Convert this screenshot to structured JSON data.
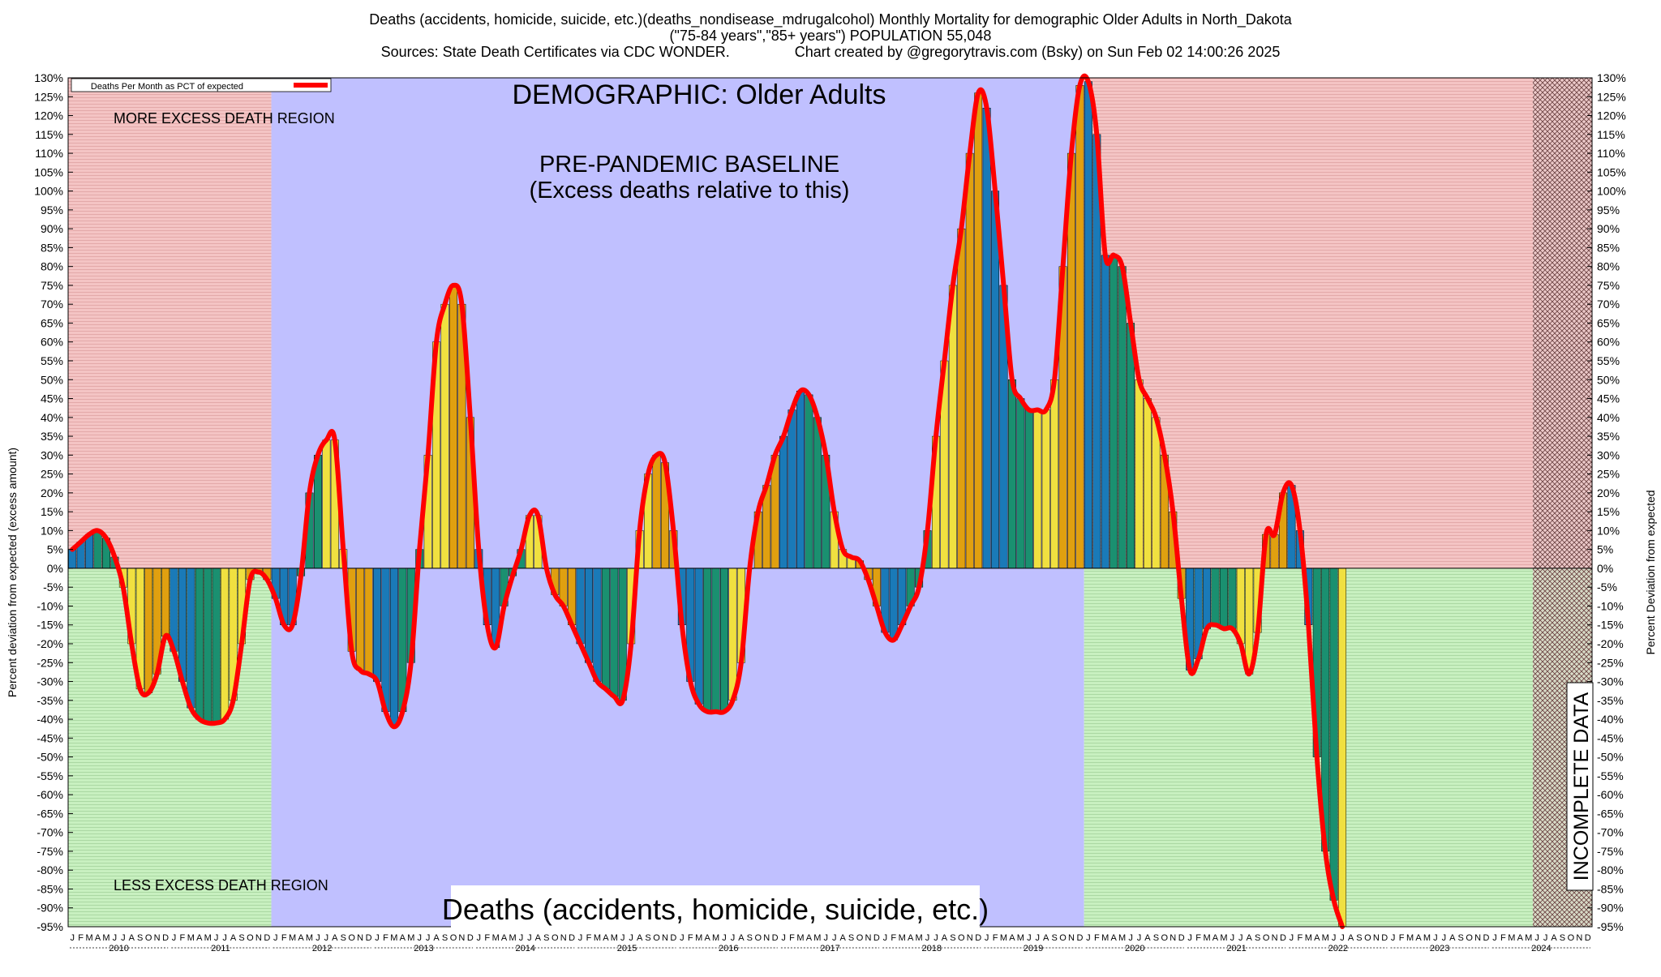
{
  "header": {
    "title_line1": "Deaths (accidents, homicide, suicide, etc.)(deaths_nondisease_mdrugalcohol) Monthly Mortality for demographic Older Adults in North_Dakota",
    "title_line2": "(\"75-84 years\",\"85+ years\") POPULATION 55,048",
    "title_line3": "Sources: State Death Certificates via CDC WONDER.                Chart created by @gregorytravis.com (Bsky) on Sun Feb 02 14:00:26 2025"
  },
  "annotations": {
    "demographic": "DEMOGRAPHIC: Older Adults",
    "baseline_line1": "PRE-PANDEMIC BASELINE",
    "baseline_line2": "(Excess deaths relative to this)",
    "more_region": "MORE EXCESS DEATH REGION",
    "less_region": "LESS EXCESS DEATH REGION",
    "bottom_label": "Deaths (accidents, homicide, suicide, etc.)",
    "incomplete": "INCOMPLETE DATA"
  },
  "colors": {
    "more_region": "#f4c4c4",
    "less_region": "#c8f0c0",
    "baseline_region": "#c0c0ff",
    "curve": "#ff0000",
    "bar_palette": [
      "#1a7ab8",
      "#1a9070",
      "#f0e040",
      "#e0a010"
    ]
  },
  "chart_data": {
    "type": "bar",
    "title": "Deaths (accidents, homicide, suicide, etc.)(deaths_nondisease_mdrugalcohol) Monthly Mortality for demographic Older Adults in North_Dakota",
    "ylabel_left": "Percent deviation from expected (excess amount)",
    "ylabel_right": "Percent Deviation from expected",
    "legend": "Deaths Per Month as PCT of expected",
    "legend_position": "top-left",
    "ylim": [
      -95,
      130
    ],
    "ytick_step": 5,
    "grid": true,
    "month_letters": [
      "J",
      "F",
      "M",
      "A",
      "M",
      "J",
      "J",
      "A",
      "S",
      "O",
      "N",
      "D"
    ],
    "years": [
      "2010",
      "2011",
      "2012",
      "2013",
      "2014",
      "2015",
      "2016",
      "2017",
      "2018",
      "2019",
      "2020",
      "2021",
      "2022",
      "2023",
      "2024"
    ],
    "start": "2010-01",
    "baseline_period": [
      "2012-01",
      "2019-12"
    ],
    "incomplete_period": [
      "2024-06",
      "2024-10"
    ],
    "values": [
      5,
      7,
      9,
      10,
      8,
      3,
      -5,
      -20,
      -32,
      -33,
      -28,
      -18,
      -22,
      -30,
      -37,
      -40,
      -41,
      -41,
      -40,
      -35,
      -20,
      -3,
      -1,
      -3,
      -8,
      -15,
      -15,
      -2,
      20,
      30,
      34,
      34,
      5,
      -22,
      -27,
      -28,
      -30,
      -38,
      -42,
      -38,
      -25,
      5,
      30,
      60,
      70,
      75,
      70,
      40,
      5,
      -15,
      -21,
      -10,
      -2,
      5,
      14,
      14,
      0,
      -7,
      -10,
      -15,
      -20,
      -25,
      -30,
      -32,
      -34,
      -35,
      -20,
      10,
      25,
      30,
      28,
      10,
      -15,
      -30,
      -36,
      -38,
      -38,
      -38,
      -35,
      -25,
      0,
      15,
      22,
      30,
      35,
      42,
      47,
      46,
      40,
      30,
      15,
      5,
      3,
      2,
      -3,
      -10,
      -17,
      -19,
      -15,
      -10,
      -5,
      10,
      35,
      55,
      75,
      90,
      110,
      126,
      122,
      100,
      75,
      50,
      45,
      42,
      42,
      42,
      50,
      80,
      110,
      128,
      129,
      115,
      83,
      83,
      80,
      65,
      50,
      45,
      40,
      30,
      15,
      -8,
      -27,
      -24,
      -16,
      -15,
      -16,
      -16,
      -20,
      -28,
      -17,
      9,
      9,
      20,
      22,
      10,
      -15,
      -50,
      -75,
      -88,
      -95
    ]
  }
}
